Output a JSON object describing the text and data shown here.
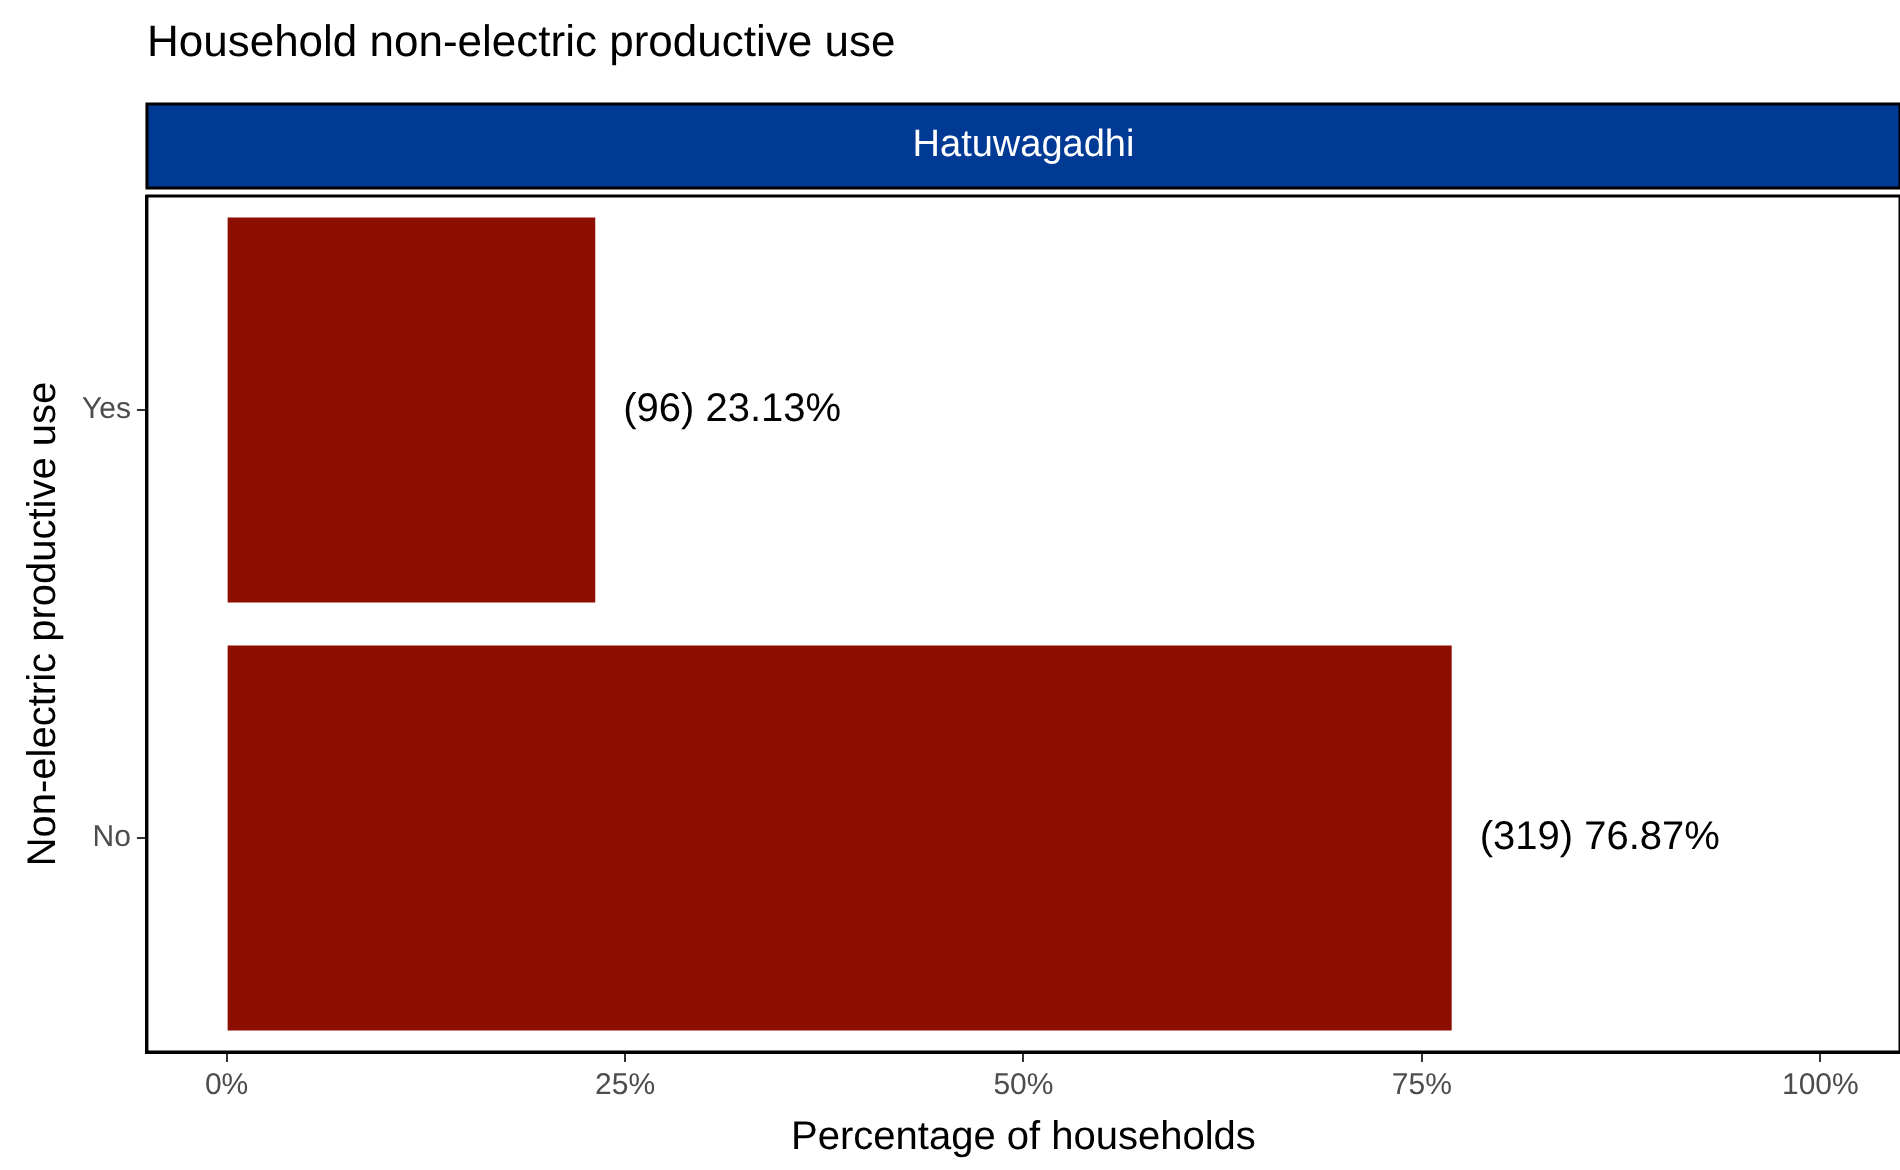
{
  "chart_data": {
    "type": "bar",
    "orientation": "horizontal",
    "title": "Household non-electric productive use",
    "subtitle": "Hatuwagadhi",
    "xlabel": "Percentage of households",
    "ylabel": "Non-electric productive use",
    "categories": [
      "Yes",
      "No"
    ],
    "values": [
      23.13,
      76.87
    ],
    "color": "#8b0e00",
    "value_labels": [
      "(96) 23.13%",
      "(319) 76.87%"
    ],
    "xlim": [
      -5,
      105
    ],
    "xticks": [
      {
        "value": 0,
        "label": "0%"
      },
      {
        "value": 25,
        "label": "25%"
      },
      {
        "value": 50,
        "label": "50%"
      },
      {
        "value": 75,
        "label": "75%"
      },
      {
        "value": 100,
        "label": "100%"
      }
    ],
    "grid": false,
    "legend": false
  }
}
